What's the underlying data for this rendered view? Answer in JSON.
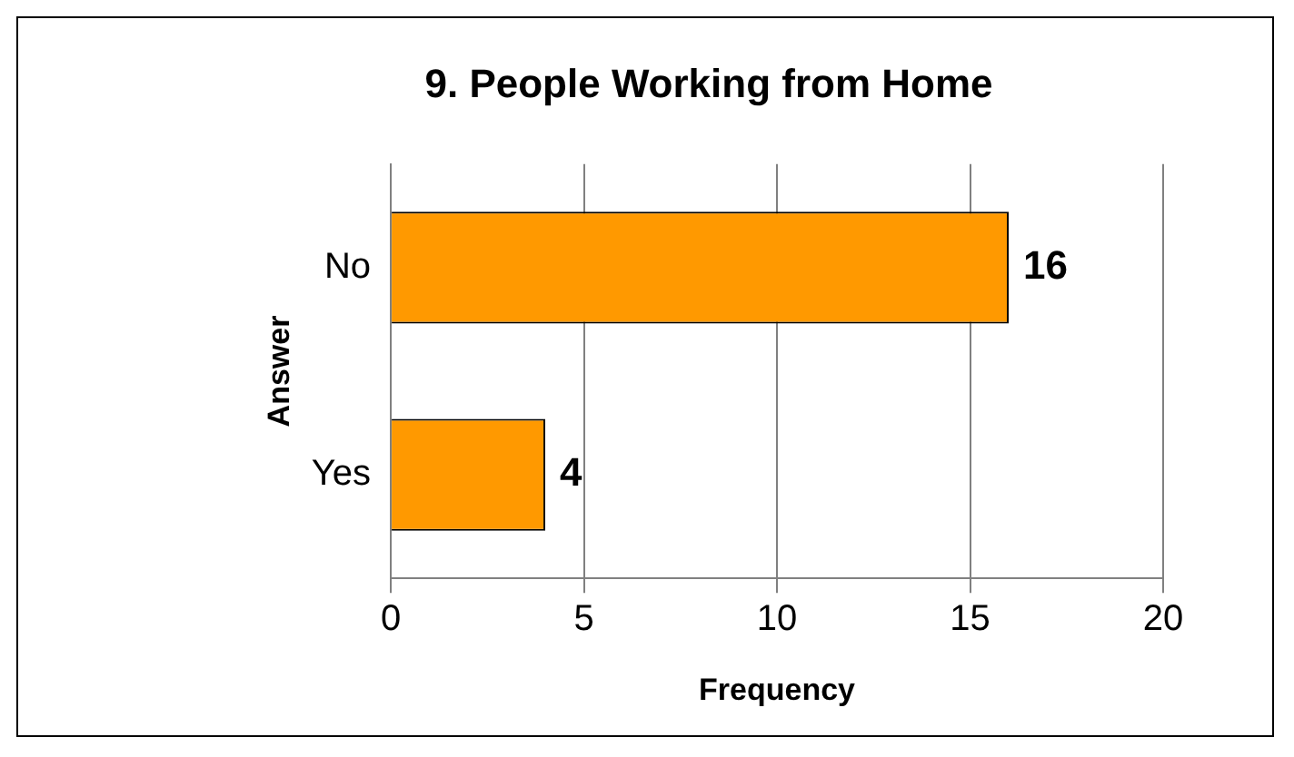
{
  "chart_data": {
    "type": "bar",
    "orientation": "horizontal",
    "title": "9. People Working from Home",
    "xlabel": "Frequency",
    "ylabel": "Answer",
    "categories": [
      "No",
      "Yes"
    ],
    "values": [
      16,
      4
    ],
    "color": "#ff9900",
    "xlim": [
      0,
      20
    ],
    "xticks": [
      0,
      5,
      10,
      15,
      20
    ],
    "grid": "x",
    "data_labels": true,
    "legend": false
  }
}
